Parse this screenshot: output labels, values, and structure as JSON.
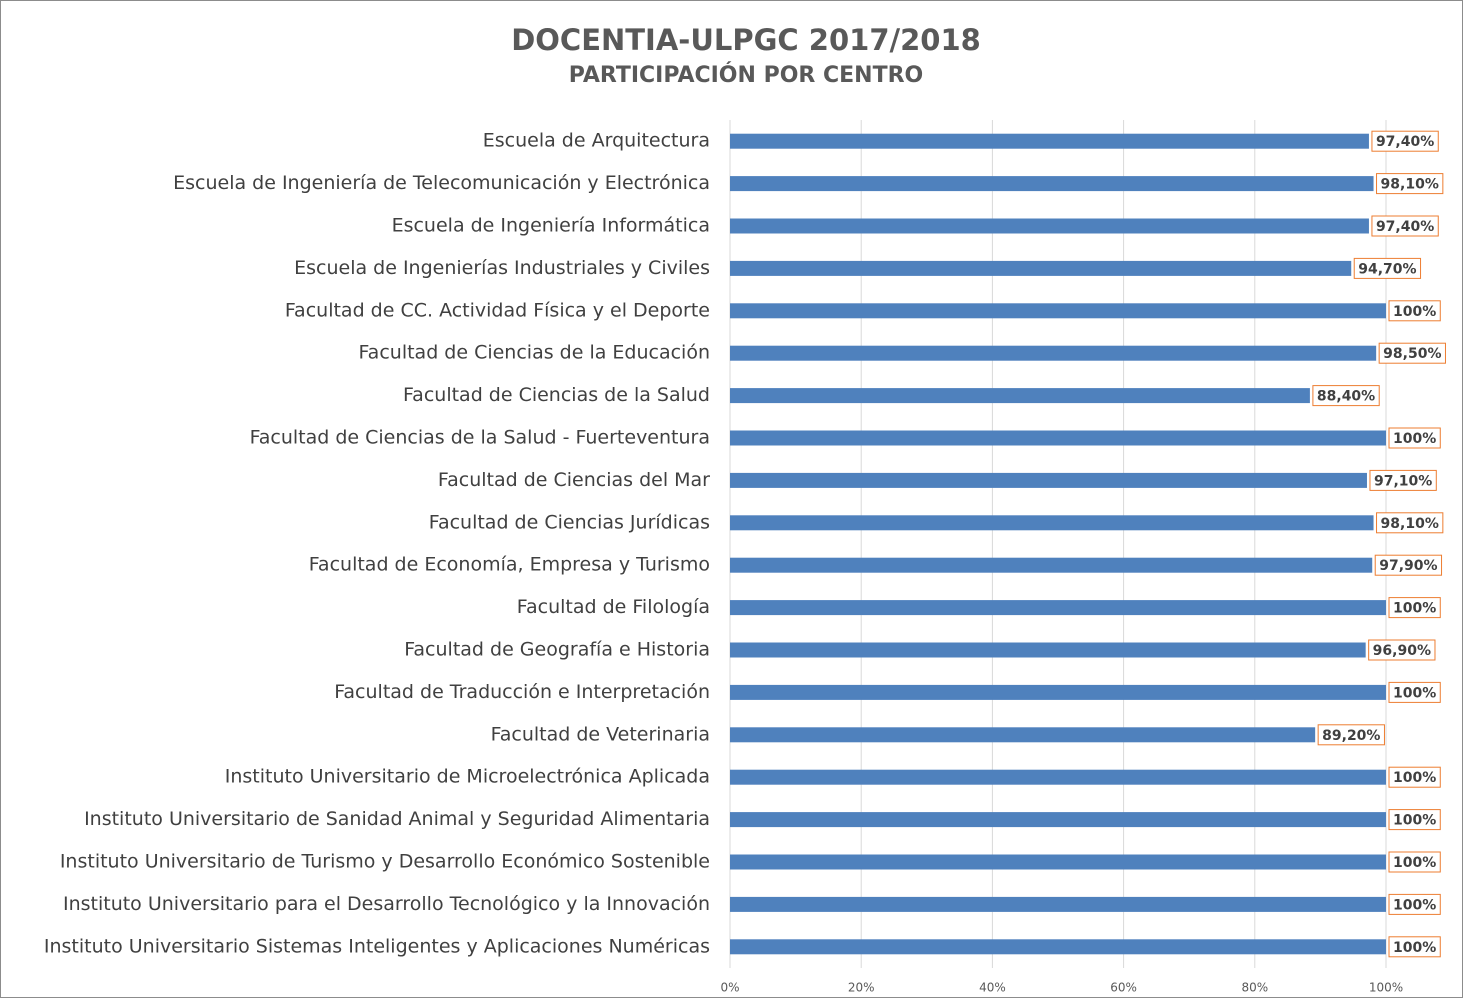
{
  "chart_data": {
    "type": "bar",
    "orientation": "horizontal",
    "title": "DOCENTIA-ULPGC 2017/2018",
    "subtitle": "PARTICIPACIÓN POR CENTRO",
    "categories": [
      "Escuela de Arquitectura",
      "Escuela de Ingeniería de Telecomunicación y Electrónica",
      "Escuela de Ingeniería Informática",
      "Escuela de Ingenierías Industriales y Civiles",
      "Facultad de CC. Actividad Física y el Deporte",
      "Facultad de Ciencias de la Educación",
      "Facultad de Ciencias de la Salud",
      "Facultad de Ciencias de la Salud - Fuerteventura",
      "Facultad de Ciencias del Mar",
      "Facultad de Ciencias Jurídicas",
      "Facultad de Economía, Empresa y Turismo",
      "Facultad de Filología",
      "Facultad de Geografía e Historia",
      "Facultad de Traducción e Interpretación",
      "Facultad de Veterinaria",
      "Instituto Universitario de Microelectrónica Aplicada",
      "Instituto Universitario de Sanidad Animal y Seguridad Alimentaria",
      "Instituto Universitario de Turismo y Desarrollo Económico Sostenible",
      "Instituto Universitario para el Desarrollo Tecnológico y la Innovación",
      "Instituto Universitario Sistemas Inteligentes y Aplicaciones Numéricas"
    ],
    "values": [
      97.4,
      98.1,
      97.4,
      94.7,
      100,
      98.5,
      88.4,
      100,
      97.1,
      98.1,
      97.9,
      100,
      96.9,
      100,
      89.2,
      100,
      100,
      100,
      100,
      100
    ],
    "value_labels": [
      "97,40%",
      "98,10%",
      "97,40%",
      "94,70%",
      "100%",
      "98,50%",
      "88,40%",
      "100%",
      "97,10%",
      "98,10%",
      "97,90%",
      "100%",
      "96,90%",
      "100%",
      "89,20%",
      "100%",
      "100%",
      "100%",
      "100%",
      "100%"
    ],
    "color": "#4f81bd",
    "label_border_color": "#ed7d31",
    "xlim": [
      0,
      100
    ],
    "xticks": [
      {
        "value": 0,
        "label": "0%"
      },
      {
        "value": 20,
        "label": "20%"
      },
      {
        "value": 40,
        "label": "40%"
      },
      {
        "value": 60,
        "label": "60%"
      },
      {
        "value": 80,
        "label": "80%"
      },
      {
        "value": 100,
        "label": "100%"
      }
    ],
    "grid": true
  }
}
